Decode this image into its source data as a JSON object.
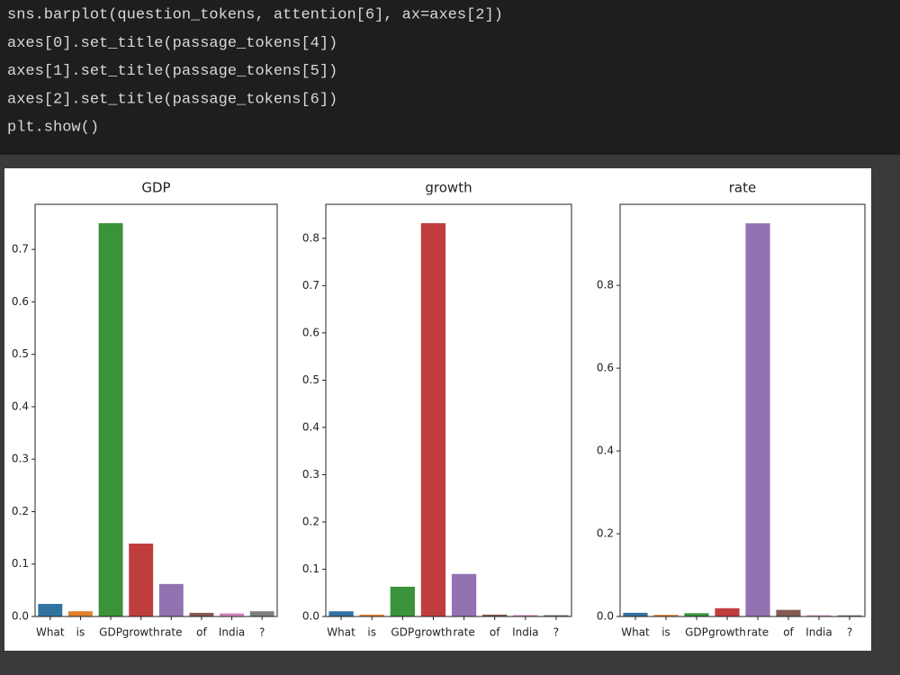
{
  "code": {
    "lines": [
      "sns.barplot(question_tokens, attention[6], ax=axes[2])",
      "axes[0].set_title(passage_tokens[4])",
      "axes[1].set_title(passage_tokens[5])",
      "axes[2].set_title(passage_tokens[6])",
      "plt.show()"
    ]
  },
  "chart_data": [
    {
      "type": "bar",
      "title": "GDP",
      "categories": [
        "What",
        "is",
        "GDP",
        "growth",
        "rate",
        "of",
        "India",
        "?"
      ],
      "values": [
        0.024,
        0.01,
        0.75,
        0.139,
        0.062,
        0.007,
        0.006,
        0.01
      ],
      "colors": [
        "#3274a1",
        "#e1812c",
        "#3a923a",
        "#c03d3e",
        "#9372b2",
        "#845b53",
        "#d684bd",
        "#7f7f7f"
      ],
      "ylim": [
        0,
        0.786
      ],
      "yticks": [
        {
          "value": 0,
          "label": "0.0"
        },
        {
          "value": 0.1,
          "label": "0.1"
        },
        {
          "value": 0.2,
          "label": "0.2"
        },
        {
          "value": 0.3,
          "label": "0.3"
        },
        {
          "value": 0.4,
          "label": "0.4"
        },
        {
          "value": 0.5,
          "label": "0.5"
        },
        {
          "value": 0.6,
          "label": "0.6"
        },
        {
          "value": 0.7,
          "label": "0.7"
        }
      ],
      "grid": false
    },
    {
      "type": "bar",
      "title": "growth",
      "categories": [
        "What",
        "is",
        "GDP",
        "growth",
        "rate",
        "of",
        "India",
        "?"
      ],
      "values": [
        0.011,
        0.004,
        0.063,
        0.832,
        0.09,
        0.004,
        0.003,
        0.003
      ],
      "colors": [
        "#3274a1",
        "#e1812c",
        "#3a923a",
        "#c03d3e",
        "#9372b2",
        "#845b53",
        "#d684bd",
        "#7f7f7f"
      ],
      "ylim": [
        0,
        0.872
      ],
      "yticks": [
        {
          "value": 0,
          "label": "0.0"
        },
        {
          "value": 0.1,
          "label": "0.1"
        },
        {
          "value": 0.2,
          "label": "0.2"
        },
        {
          "value": 0.3,
          "label": "0.3"
        },
        {
          "value": 0.4,
          "label": "0.4"
        },
        {
          "value": 0.5,
          "label": "0.5"
        },
        {
          "value": 0.6,
          "label": "0.6"
        },
        {
          "value": 0.7,
          "label": "0.7"
        },
        {
          "value": 0.8,
          "label": "0.8"
        }
      ],
      "grid": false
    },
    {
      "type": "bar",
      "title": "rate",
      "categories": [
        "What",
        "is",
        "GDP",
        "growth",
        "rate",
        "of",
        "India",
        "?"
      ],
      "values": [
        0.009,
        0.004,
        0.008,
        0.02,
        0.95,
        0.016,
        0.003,
        0.003
      ],
      "colors": [
        "#3274a1",
        "#e1812c",
        "#3a923a",
        "#c03d3e",
        "#9372b2",
        "#845b53",
        "#d684bd",
        "#7f7f7f"
      ],
      "ylim": [
        0,
        0.996
      ],
      "yticks": [
        {
          "value": 0,
          "label": "0.0"
        },
        {
          "value": 0.2,
          "label": "0.2"
        },
        {
          "value": 0.4,
          "label": "0.4"
        },
        {
          "value": 0.6,
          "label": "0.6"
        },
        {
          "value": 0.8,
          "label": "0.8"
        }
      ],
      "grid": false
    }
  ]
}
